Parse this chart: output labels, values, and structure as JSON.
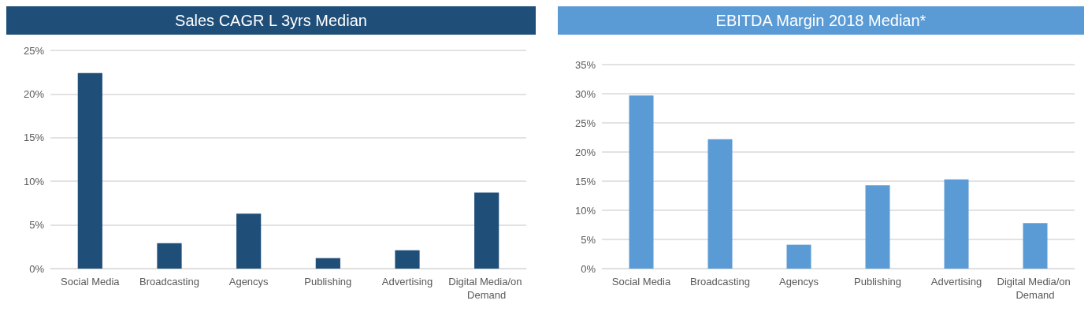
{
  "chart_data": [
    {
      "type": "bar",
      "title": "Sales CAGR L 3yrs Median",
      "categories": [
        "Social Media",
        "Broadcasting",
        "Agencys",
        "Publishing",
        "Advertising",
        "Digital Media/on Demand"
      ],
      "values": [
        22.4,
        2.9,
        6.3,
        1.2,
        2.1,
        8.7
      ],
      "color": "#1f4e79",
      "ylim": [
        0,
        25
      ],
      "yticks": [
        {
          "value": 0,
          "label": "0%"
        },
        {
          "value": 5,
          "label": "5%"
        },
        {
          "value": 10,
          "label": "10%"
        },
        {
          "value": 15,
          "label": "15%"
        },
        {
          "value": 20,
          "label": "20%"
        },
        {
          "value": 25,
          "label": "25%"
        }
      ],
      "grid": "y"
    },
    {
      "type": "bar",
      "title": "EBITDA Margin 2018 Median*",
      "categories": [
        "Social Media",
        "Broadcasting",
        "Agencys",
        "Publishing",
        "Advertising",
        "Digital Media/on Demand"
      ],
      "values": [
        29.7,
        22.2,
        4.1,
        14.3,
        15.3,
        7.8
      ],
      "color": "#5b9bd5",
      "ylim": [
        0,
        35
      ],
      "yticks": [
        {
          "value": 0,
          "label": "0%"
        },
        {
          "value": 5,
          "label": "5%"
        },
        {
          "value": 10,
          "label": "10%"
        },
        {
          "value": 15,
          "label": "15%"
        },
        {
          "value": 20,
          "label": "20%"
        },
        {
          "value": 25,
          "label": "25%"
        },
        {
          "value": 30,
          "label": "30%"
        },
        {
          "value": 35,
          "label": "35%"
        }
      ],
      "grid": "y"
    }
  ]
}
